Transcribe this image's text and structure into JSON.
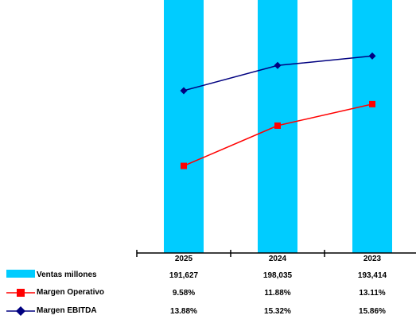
{
  "chart_data": {
    "type": "bar",
    "categories": [
      "2025",
      "2024",
      "2023"
    ],
    "series": [
      {
        "name": "Ventas millones",
        "kind": "bar",
        "color": "#00CCFF",
        "values": [
          191627,
          198035,
          193414
        ],
        "labels": [
          "191,627",
          "198,035",
          "193,414"
        ]
      },
      {
        "name": "Margen Operativo",
        "kind": "line",
        "color": "#FF0000",
        "marker": "square",
        "values": [
          9.58,
          11.88,
          13.11
        ],
        "labels": [
          "9.58%",
          "11.88%",
          "13.11%"
        ]
      },
      {
        "name": "Margen EBITDA",
        "kind": "line",
        "color": "#000080",
        "marker": "diamond",
        "values": [
          13.88,
          15.32,
          15.86
        ],
        "labels": [
          "13.88%",
          "15.32%",
          "15.86%"
        ]
      }
    ],
    "legend": "data-table-bottom",
    "grid": false
  }
}
